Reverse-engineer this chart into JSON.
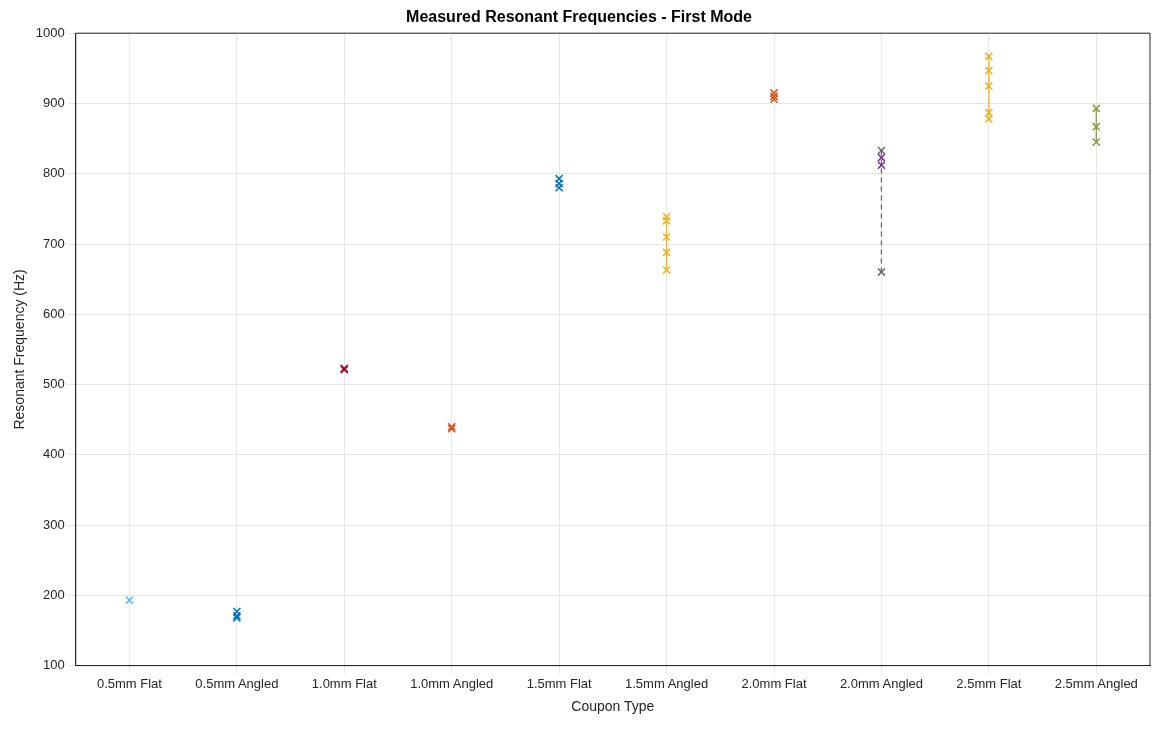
{
  "chart_data": {
    "type": "scatter",
    "title": "Measured Resonant Frequencies - First Mode",
    "xlabel": "Coupon Type",
    "ylabel": "Resonant Frequency (Hz)",
    "categories": [
      "0.5mm Flat",
      "0.5mm Angled",
      "1.0mm Flat",
      "1.0mm Angled",
      "1.5mm Flat",
      "1.5mm Angled",
      "2.0mm Flat",
      "2.0mm Angled",
      "2.5mm Flat",
      "2.5mm Angled"
    ],
    "ylim": [
      100,
      1000
    ],
    "yticks": [
      100,
      200,
      300,
      400,
      500,
      600,
      700,
      800,
      900,
      1000
    ],
    "grid": true,
    "marker": "cross",
    "legend": false,
    "series": [
      {
        "color": "#4dbeee",
        "x": [
          "0.5mm Flat"
        ],
        "values": [
          193
        ]
      },
      {
        "color": "#0072bd",
        "x": [
          "0.5mm Angled",
          "0.5mm Angled",
          "0.5mm Angled"
        ],
        "values": [
          177,
          171,
          168
        ]
      },
      {
        "color": "#a2142f",
        "x": [
          "1.0mm Flat",
          "1.0mm Flat"
        ],
        "values": [
          523,
          521
        ]
      },
      {
        "color": "#d95319",
        "x": [
          "1.0mm Angled",
          "1.0mm Angled"
        ],
        "values": [
          440,
          437
        ]
      },
      {
        "color": "#0072bd",
        "x": [
          "1.5mm Flat",
          "1.5mm Flat",
          "1.5mm Flat"
        ],
        "values": [
          793,
          786,
          780
        ]
      },
      {
        "type": "line",
        "line_style": "solid",
        "color": "#edb120",
        "x": [
          "1.5mm Angled",
          "1.5mm Angled",
          "1.5mm Angled",
          "1.5mm Angled",
          "1.5mm Angled"
        ],
        "values": [
          739,
          733,
          710,
          688,
          663
        ]
      },
      {
        "color": "#d95319",
        "x": [
          "2.0mm Flat",
          "2.0mm Flat",
          "2.0mm Flat"
        ],
        "values": [
          915,
          910,
          906
        ]
      },
      {
        "type": "line",
        "line_style": "dashed",
        "color": "#666666",
        "x": [
          "2.0mm Angled",
          "2.0mm Angled"
        ],
        "values": [
          833,
          660
        ]
      },
      {
        "color": "#7e2f8e",
        "x": [
          "2.0mm Angled",
          "2.0mm Angled"
        ],
        "values": [
          823,
          812
        ]
      },
      {
        "type": "line",
        "line_style": "solid",
        "color": "#edb120",
        "x": [
          "2.5mm Flat",
          "2.5mm Flat",
          "2.5mm Flat",
          "2.5mm Flat",
          "2.5mm Flat"
        ],
        "values": [
          967,
          947,
          925,
          887,
          878
        ]
      },
      {
        "type": "line",
        "line_style": "solid",
        "color": "#8a9a3c",
        "x": [
          "2.5mm Angled",
          "2.5mm Angled",
          "2.5mm Angled"
        ],
        "values": [
          893,
          867,
          845
        ]
      }
    ]
  }
}
